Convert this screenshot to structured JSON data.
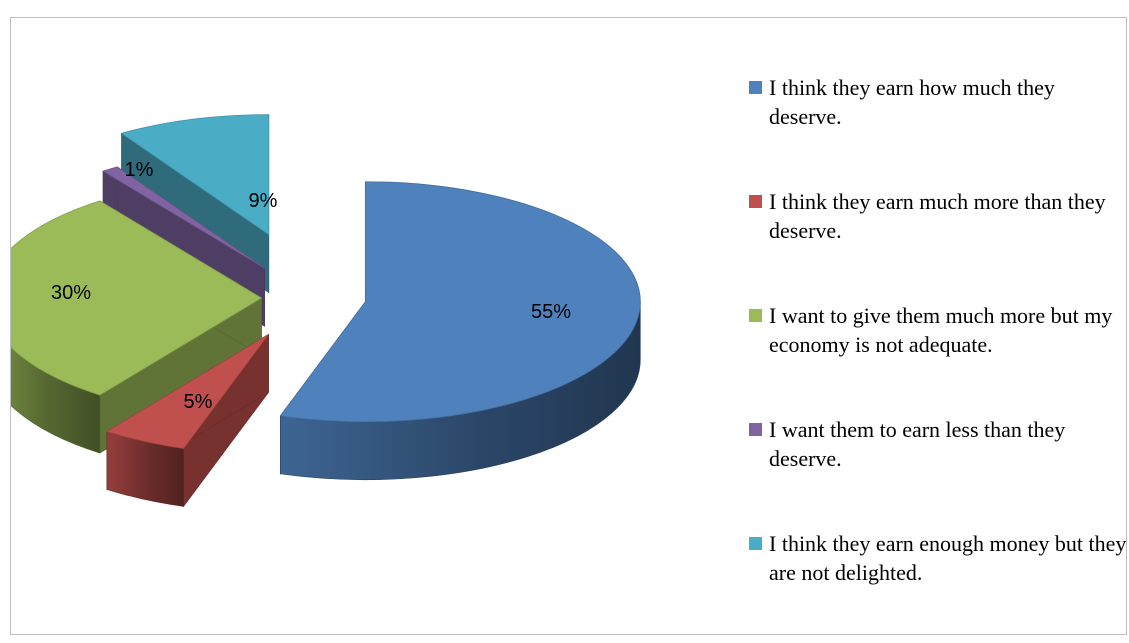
{
  "chart_data": {
    "type": "pie",
    "style": "3d-exploded",
    "title": "",
    "legend_position": "right",
    "slices": [
      {
        "label": "I think they earn how much they deserve.",
        "value": 55,
        "display": "55%",
        "color": "#4f81bd"
      },
      {
        "label": "I think they earn much more than they deserve.",
        "value": 5,
        "display": "5%",
        "color": "#c0504d"
      },
      {
        "label": "I want to give them much more but my economy is not adequate.",
        "value": 30,
        "display": "30%",
        "color": "#9bbb59"
      },
      {
        "label": "I want them to earn less than they deserve.",
        "value": 1,
        "display": "1%",
        "color": "#8064a2"
      },
      {
        "label": "I think they earn enough money but they are not delighted.",
        "value": 9,
        "display": "9%",
        "color": "#4bacc6"
      }
    ]
  }
}
